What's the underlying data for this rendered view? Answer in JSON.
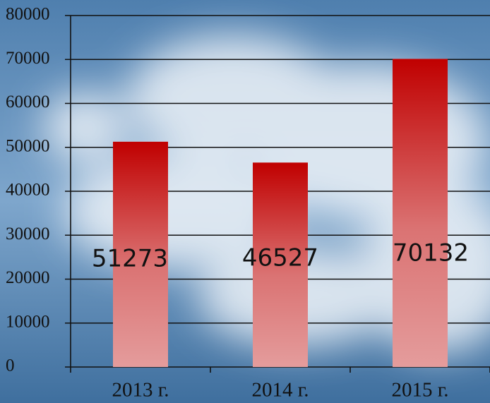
{
  "chart_data": {
    "type": "bar",
    "categories": [
      "2013 г.",
      "2014 г.",
      "2015 г."
    ],
    "values": [
      51273,
      46527,
      70132
    ],
    "color": "#c00000",
    "ylim": [
      0,
      80000
    ],
    "yticks": [
      0,
      10000,
      20000,
      30000,
      40000,
      50000,
      60000,
      70000,
      80000
    ],
    "grid": true
  }
}
